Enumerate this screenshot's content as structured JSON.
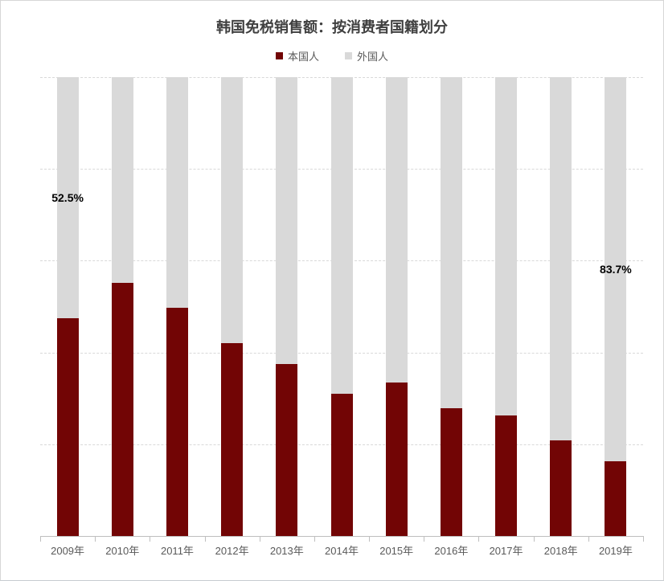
{
  "chart": {
    "title": "韩国免税销售额：按消费者国籍划分"
  },
  "legend": {
    "items": [
      {
        "label": "本国人",
        "color": "#720505"
      },
      {
        "label": "外国人",
        "color": "#d9d9d9"
      }
    ]
  },
  "chart_data": {
    "type": "bar",
    "subtype": "stacked-100-percent",
    "title": "韩国免税销售额：按消费者国籍划分",
    "categories": [
      "2009年",
      "2010年",
      "2011年",
      "2012年",
      "2013年",
      "2014年",
      "2015年",
      "2016年",
      "2017年",
      "2018年",
      "2019年"
    ],
    "series": [
      {
        "name": "本国人",
        "color": "#720505",
        "values": [
          47.5,
          55.2,
          49.8,
          42.1,
          37.4,
          31.0,
          33.5,
          27.9,
          26.3,
          20.9,
          16.3
        ]
      },
      {
        "name": "外国人",
        "color": "#d9d9d9",
        "values": [
          52.5,
          44.8,
          50.2,
          57.9,
          62.6,
          69.0,
          66.5,
          72.1,
          73.7,
          79.1,
          83.7
        ]
      }
    ],
    "annotations": [
      {
        "category_index": 0,
        "series": "外国人",
        "text": "52.5%"
      },
      {
        "category_index": 10,
        "series": "外国人",
        "text": "83.7%"
      }
    ],
    "xlabel": "",
    "ylabel": "",
    "ylim": [
      0,
      100
    ],
    "grid": "horizontal-dashed",
    "grid_interval_pct": 20,
    "y_axis_labels_visible": false,
    "legend_position": "top"
  },
  "colors": {
    "grid": "#d9d9d9",
    "axis": "#bfbfbf",
    "axis_label": "#595959",
    "title": "#3f3f3f",
    "annotation": "#000000",
    "background": "#ffffff"
  }
}
